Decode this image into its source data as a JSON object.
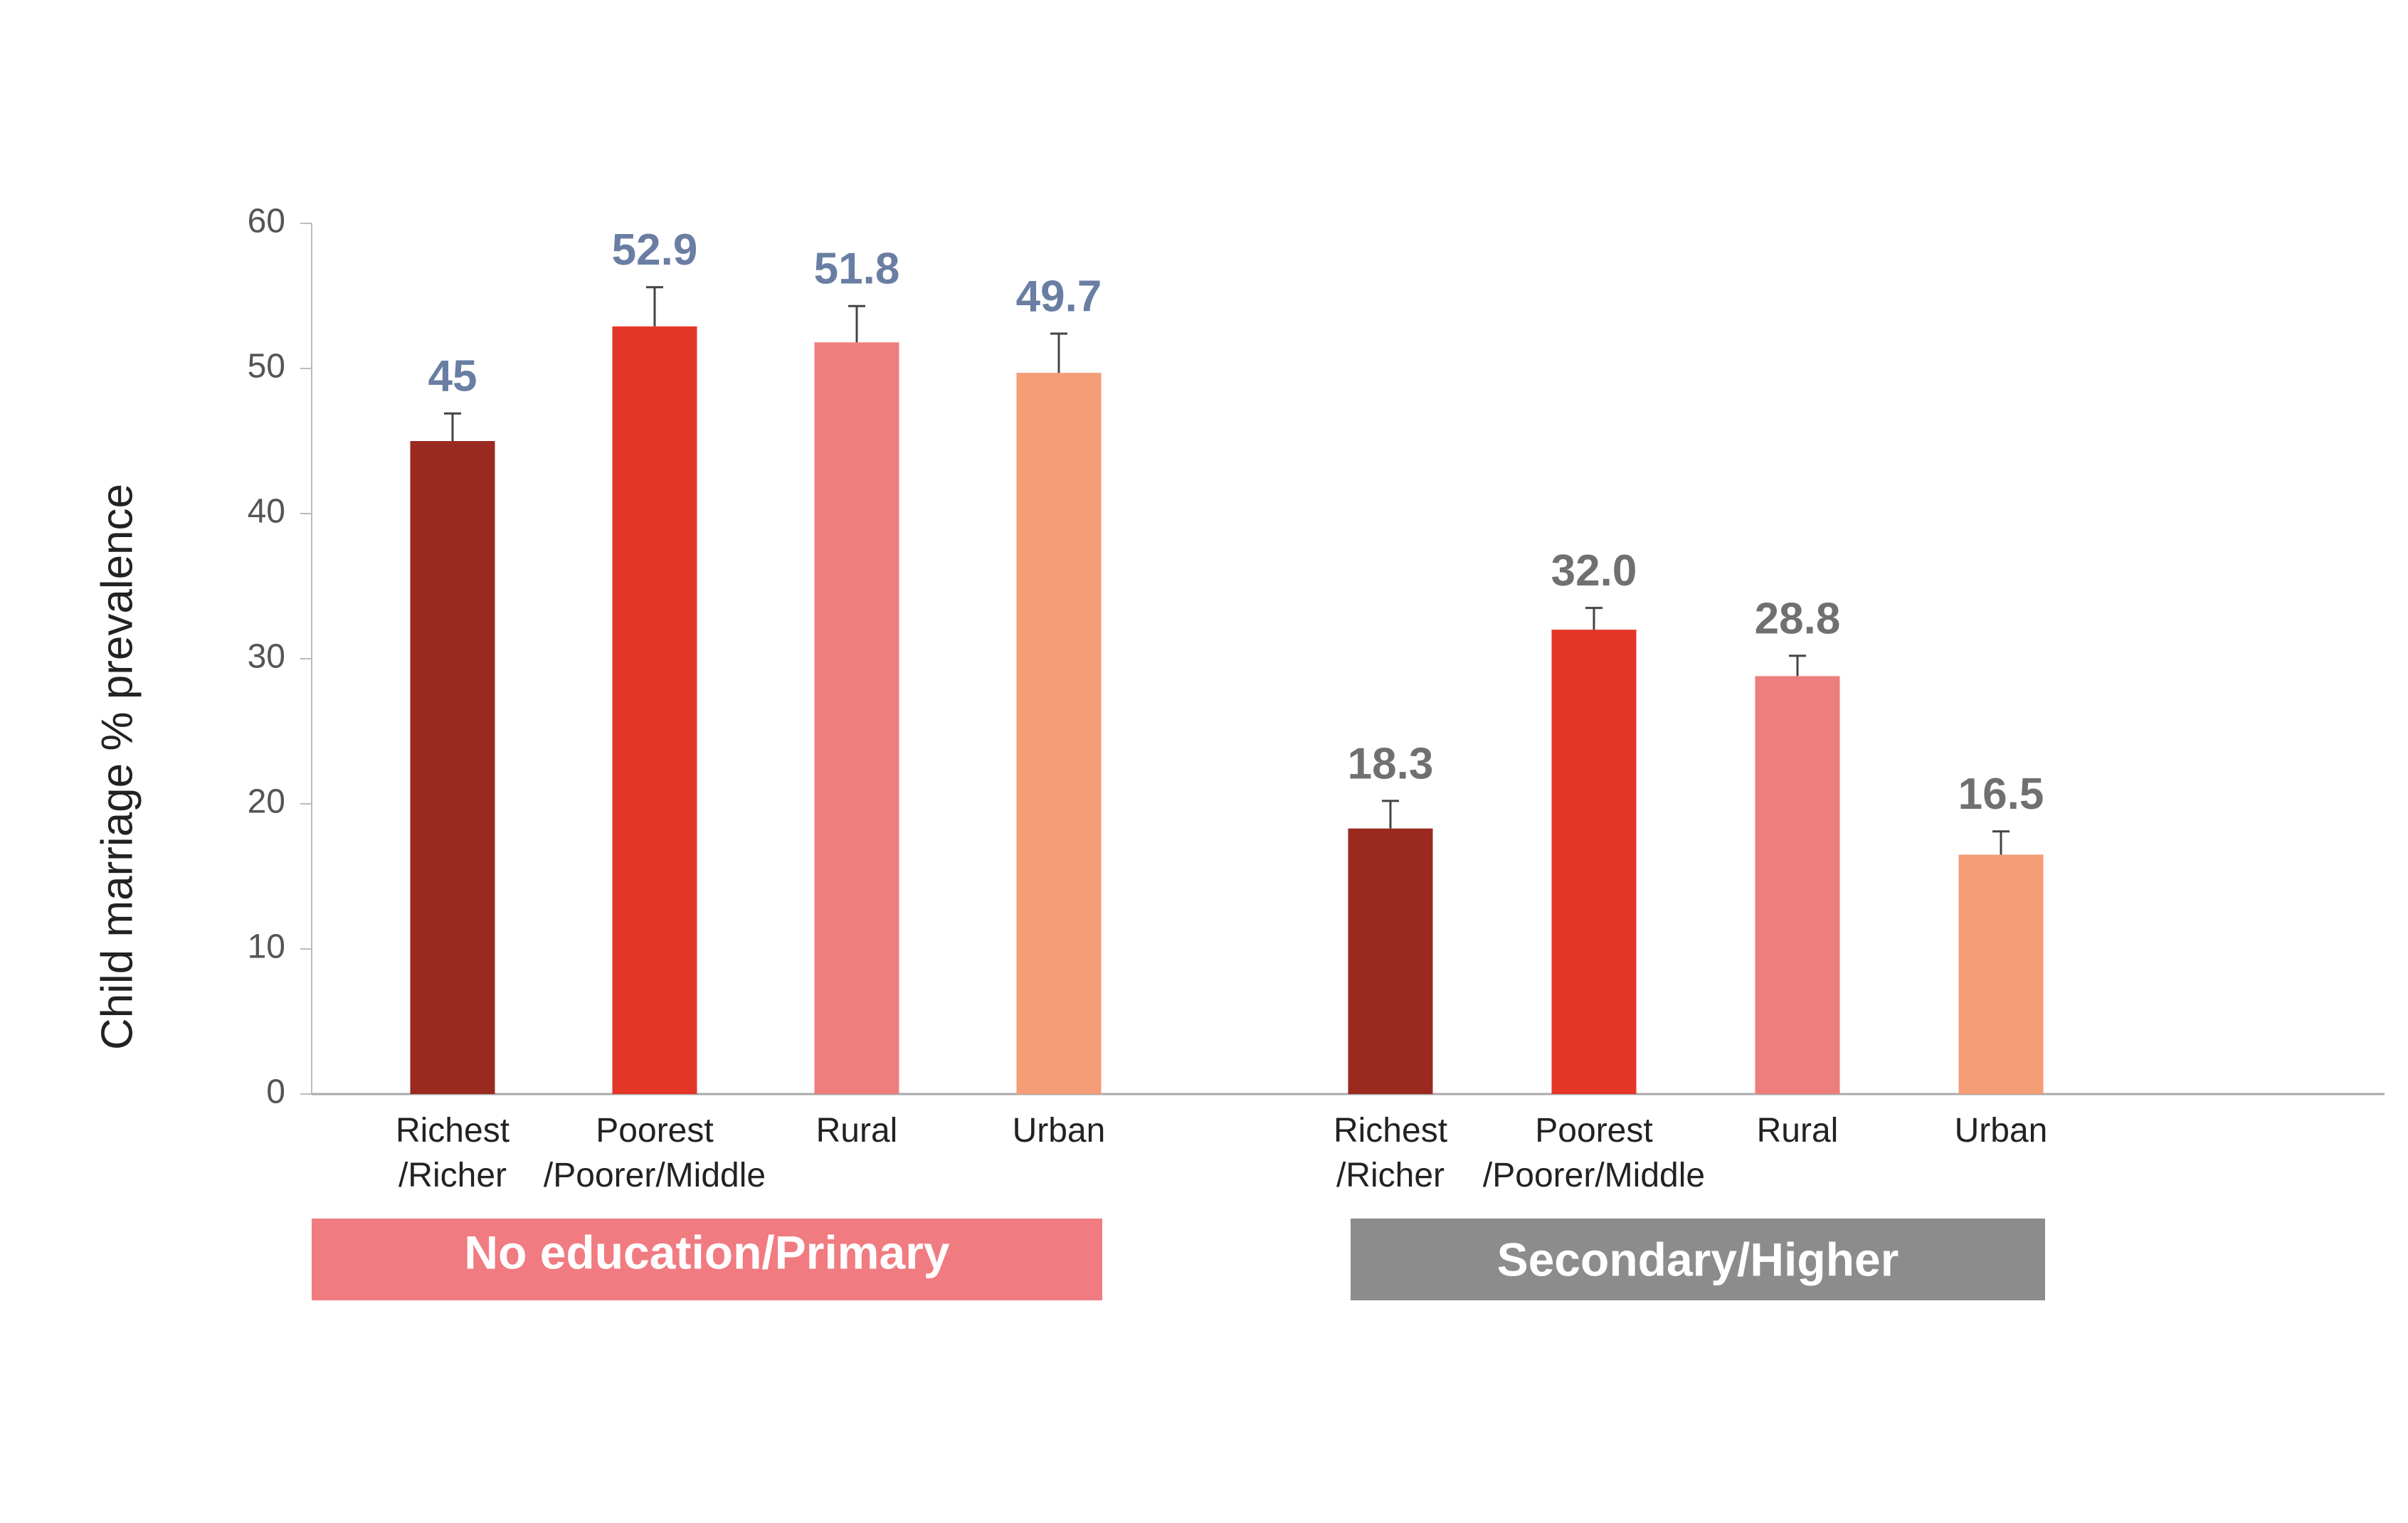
{
  "chart_data": {
    "type": "bar",
    "y_label": "Child marriage % prevalence",
    "ylim": [
      0,
      60
    ],
    "yticks": [
      0,
      10,
      20,
      30,
      40,
      50,
      60
    ],
    "groups": [
      {
        "label": "No education/Primary",
        "color": "#f07b80",
        "label_color": "#6a7ea3",
        "categories": [
          "Richest\n/Richer",
          "Poorest\n/Poorer/Middle",
          "Rural",
          "Urban"
        ],
        "colors": [
          "#9a2a20",
          "#e33627",
          "#ee7d7d",
          "#f49d76"
        ],
        "values": [
          45,
          52.9,
          51.8,
          49.7
        ],
        "value_labels": [
          "45",
          "52.9",
          "51.8",
          "49.7"
        ],
        "errors": [
          1.9,
          2.7,
          2.5,
          2.7
        ]
      },
      {
        "label": "Secondary/Higher",
        "color": "#8c8c8c",
        "label_color": "#707070",
        "categories": [
          "Richest\n/Richer",
          "Poorest\n/Poorer/Middle",
          "Rural",
          "Urban"
        ],
        "colors": [
          "#9a2a20",
          "#e33627",
          "#ee7d7d",
          "#f49d76"
        ],
        "values": [
          18.3,
          32.0,
          28.8,
          16.5
        ],
        "value_labels": [
          "18.3",
          "32.0",
          "28.8",
          "16.5"
        ],
        "errors": [
          1.9,
          1.5,
          1.4,
          1.6
        ]
      }
    ]
  }
}
